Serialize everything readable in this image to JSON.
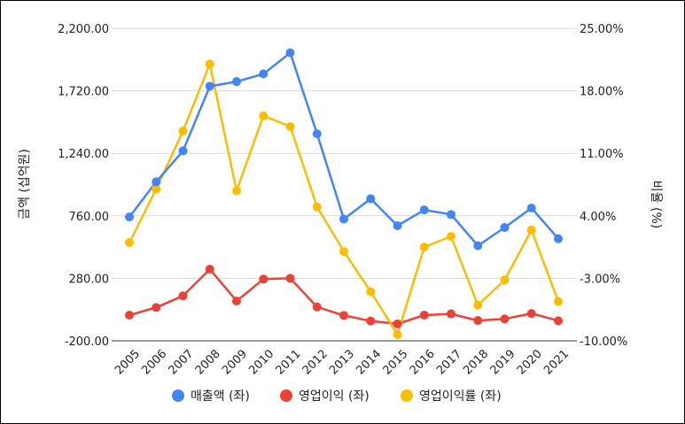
{
  "chart_data": {
    "type": "line",
    "categories": [
      "2005",
      "2006",
      "2007",
      "2008",
      "2009",
      "2010",
      "2011",
      "2012",
      "2013",
      "2014",
      "2015",
      "2016",
      "2017",
      "2018",
      "2019",
      "2020",
      "2021"
    ],
    "series": [
      {
        "name": "매출액 (좌)",
        "axis": "left",
        "color": "#4285f4",
        "values": [
          751,
          1021,
          1259,
          1755,
          1791,
          1850,
          2012,
          1390,
          735,
          891,
          684,
          805,
          770,
          530,
          670,
          820,
          584
        ]
      },
      {
        "name": "영업이익 (좌)",
        "axis": "left",
        "color": "#ea4335",
        "values": [
          -3,
          56,
          145,
          350,
          105,
          274,
          280,
          60,
          -5,
          -48,
          -70,
          -3,
          7,
          -44,
          -32,
          10,
          -46
        ]
      },
      {
        "name": "영업이익률 (좌)",
        "axis": "right",
        "color": "#fbbc04",
        "values": [
          1.0,
          7.0,
          13.5,
          21.0,
          6.8,
          15.2,
          14.0,
          5.0,
          0.0,
          -4.5,
          -9.3,
          0.5,
          1.7,
          -6.0,
          -3.2,
          2.4,
          -5.6
        ]
      }
    ],
    "ylabel_left": "금액 (십억원)",
    "ylabel_right": "비율 (%)",
    "yaxis_left": {
      "min": -200,
      "max": 2200,
      "ticks": [
        -200,
        280,
        760,
        1240,
        1720,
        2200
      ],
      "tick_labels": [
        "-200.00",
        "280.00",
        "760.00",
        "1,240.00",
        "1,720.00",
        "2,200.00"
      ]
    },
    "yaxis_right": {
      "min": -10,
      "max": 25,
      "ticks": [
        -10,
        -3,
        4,
        11,
        18,
        25
      ],
      "tick_labels": [
        "-10.00%",
        "-3.00%",
        "4.00%",
        "11.00%",
        "18.00%",
        "25.00%"
      ]
    },
    "grid": true,
    "legend": "bottom"
  }
}
